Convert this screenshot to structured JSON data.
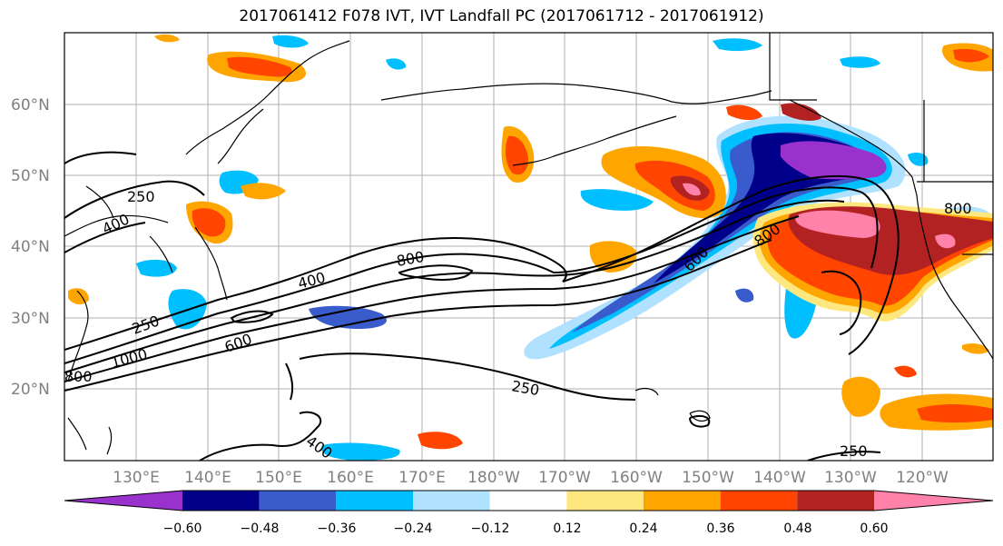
{
  "title": "2017061412 F078 IVT, IVT Landfall PC (2017061712 - 2017061912)",
  "lat_labels": [
    "60°N",
    "50°N",
    "40°N",
    "30°N",
    "20°N"
  ],
  "lon_labels": [
    "130°E",
    "140°E",
    "150°E",
    "160°E",
    "170°E",
    "180°W",
    "170°W",
    "160°W",
    "150°W",
    "140°W",
    "130°W",
    "120°W"
  ],
  "colorbar": {
    "ticks": [
      "−0.60",
      "−0.48",
      "−0.36",
      "−0.24",
      "−0.12",
      "0.12",
      "0.24",
      "0.36",
      "0.48",
      "0.60"
    ],
    "colors": [
      "#9932cc",
      "#00008b",
      "#3a5bcc",
      "#00bfff",
      "#b0e2ff",
      "#ffffff",
      "#ffe780",
      "#ffa500",
      "#ff4500",
      "#b22222",
      "#ff82ab"
    ]
  },
  "contour_labels": [
    "250",
    "400",
    "250",
    "1000",
    "600",
    "400",
    "800",
    "800",
    "600",
    "800",
    "250",
    "400",
    "250",
    "800"
  ]
}
